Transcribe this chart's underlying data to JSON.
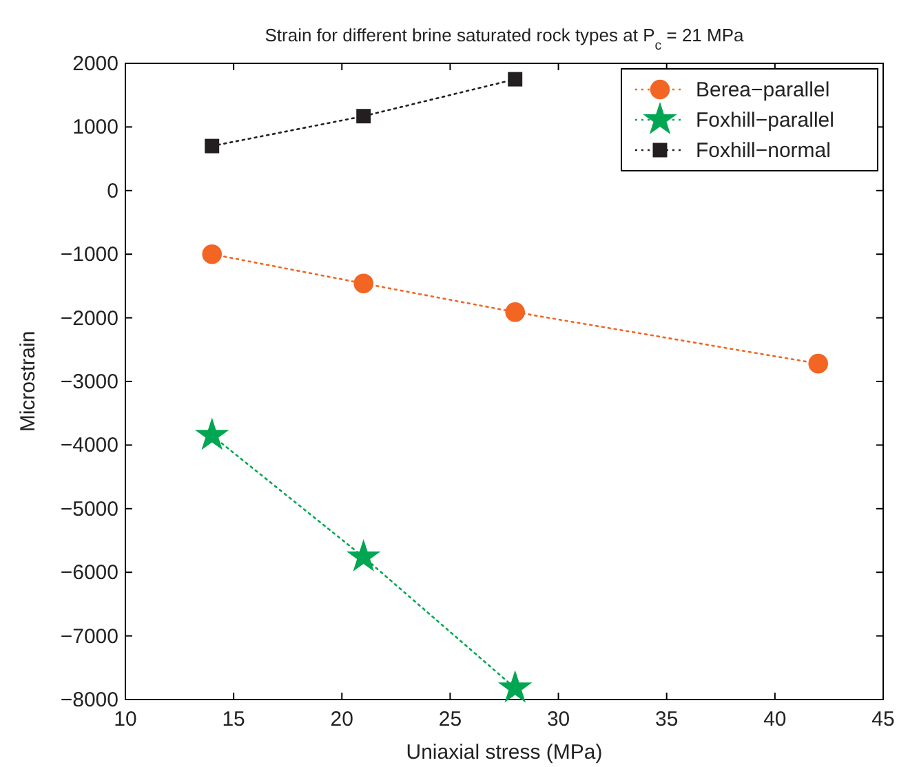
{
  "chart_data": {
    "type": "line",
    "title": "Strain for different brine saturated rock types at P$_{c}$ = 21 MPa",
    "xlabel": "Uniaxial stress (MPa)",
    "ylabel": "Microstrain",
    "xlim": [
      10,
      45
    ],
    "xticks": [
      10,
      15,
      20,
      25,
      30,
      35,
      40,
      45
    ],
    "ylim": [
      -8000,
      2000
    ],
    "yticks": [
      -8000,
      -7000,
      -6000,
      -5000,
      -4000,
      -3000,
      -2000,
      -1000,
      0,
      1000,
      2000
    ],
    "legend": "top right",
    "line_style": "dotted",
    "grid": false,
    "series": [
      {
        "name": "Berea−parallel",
        "color": "#f26522",
        "marker": "circle",
        "x": [
          14,
          21,
          28,
          42
        ],
        "values": [
          -1000,
          -1460,
          -1910,
          -2720
        ]
      },
      {
        "name": "Foxhill−parallel",
        "color": "#00a651",
        "marker": "star",
        "x": [
          14,
          21,
          28
        ],
        "values": [
          -3850,
          -5760,
          -7820
        ]
      },
      {
        "name": "Foxhill−normal",
        "color": "#231f20",
        "marker": "square",
        "x": [
          14,
          21,
          28
        ],
        "values": [
          700,
          1170,
          1750
        ]
      }
    ]
  }
}
